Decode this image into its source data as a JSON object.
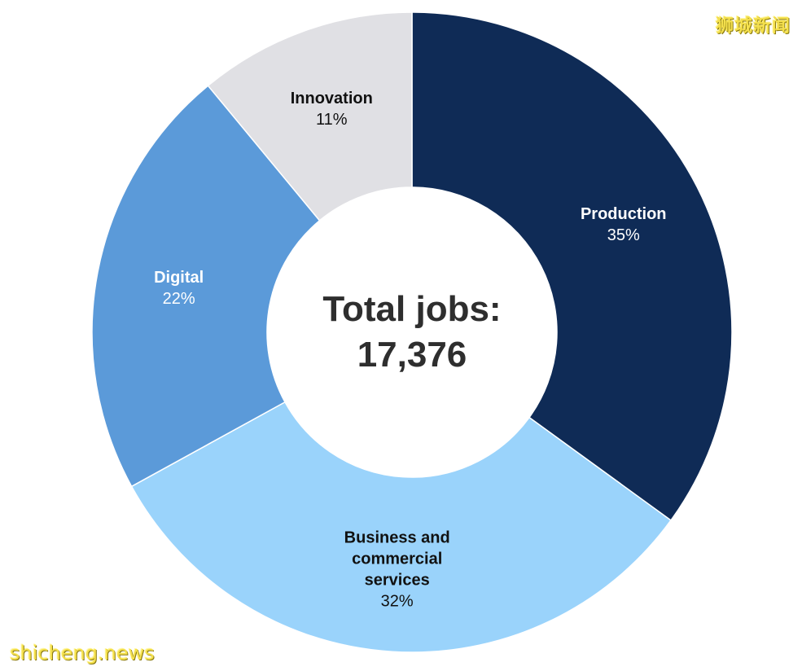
{
  "watermarks": {
    "top_right": "狮城新闻",
    "bottom_left": "shicheng.news"
  },
  "chart_data": {
    "type": "pie",
    "style": "donut",
    "center_label": {
      "line1": "Total jobs:",
      "line2": "17,376"
    },
    "slices": [
      {
        "name": "Production",
        "name_lines": [
          "Production"
        ],
        "percent_label": "35%",
        "value": 35,
        "color": "#0f2b56",
        "text_color": "#ffffff"
      },
      {
        "name": "Business and commercial services",
        "name_lines": [
          "Business and",
          "commercial",
          "services"
        ],
        "percent_label": "32%",
        "value": 32,
        "color": "#9ad3fb",
        "text_color": "#111111"
      },
      {
        "name": "Digital",
        "name_lines": [
          "Digital"
        ],
        "percent_label": "22%",
        "value": 22,
        "color": "#5b9ad9",
        "text_color": "#ffffff"
      },
      {
        "name": "Innovation",
        "name_lines": [
          "Innovation"
        ],
        "percent_label": "11%",
        "value": 11,
        "color": "#e0e0e4",
        "text_color": "#111111"
      }
    ]
  }
}
